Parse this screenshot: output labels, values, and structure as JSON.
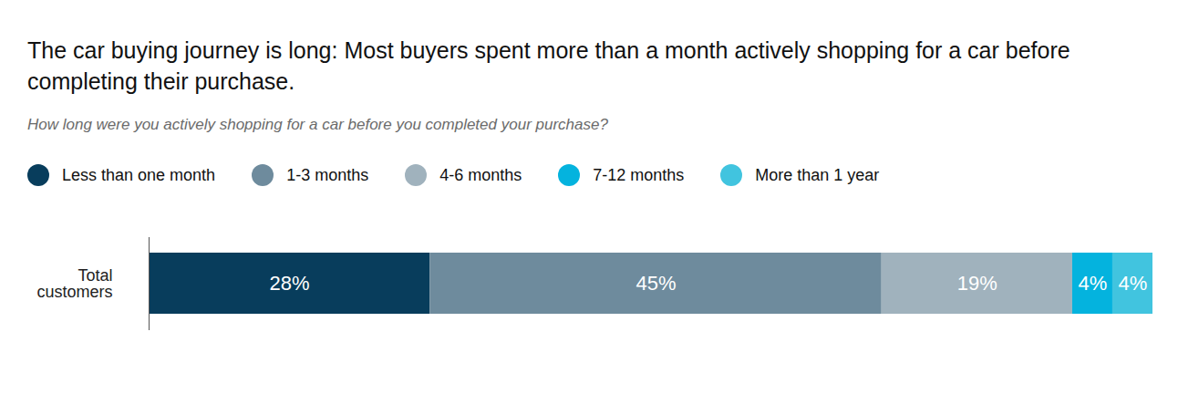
{
  "chart_data": {
    "type": "bar",
    "title": "The car buying journey is long: Most buyers spent more than a month actively shopping for a car before completing their purchase.",
    "subtitle": "How long were you actively shopping for a car before you completed your purchase?",
    "orientation": "horizontal",
    "stacked": true,
    "data_labels": true,
    "tick_labels": "y",
    "legend": "top-left",
    "categories": [
      "Total customers"
    ],
    "xlim": [
      0,
      100
    ],
    "series": [
      {
        "name": "Less than one month",
        "color": "#083d5c",
        "values": [
          28
        ],
        "value_labels": [
          "28%"
        ]
      },
      {
        "name": "1-3 months",
        "color": "#6e8b9d",
        "values": [
          45
        ],
        "value_labels": [
          "45%"
        ]
      },
      {
        "name": "4-6 months",
        "color": "#a0b2bd",
        "values": [
          19
        ],
        "value_labels": [
          "19%"
        ]
      },
      {
        "name": "7-12 months",
        "color": "#04b3de",
        "values": [
          4
        ],
        "value_labels": [
          "4%"
        ]
      },
      {
        "name": "More than 1 year",
        "color": "#41c4df",
        "values": [
          4
        ],
        "value_labels": [
          "4%"
        ]
      }
    ]
  }
}
